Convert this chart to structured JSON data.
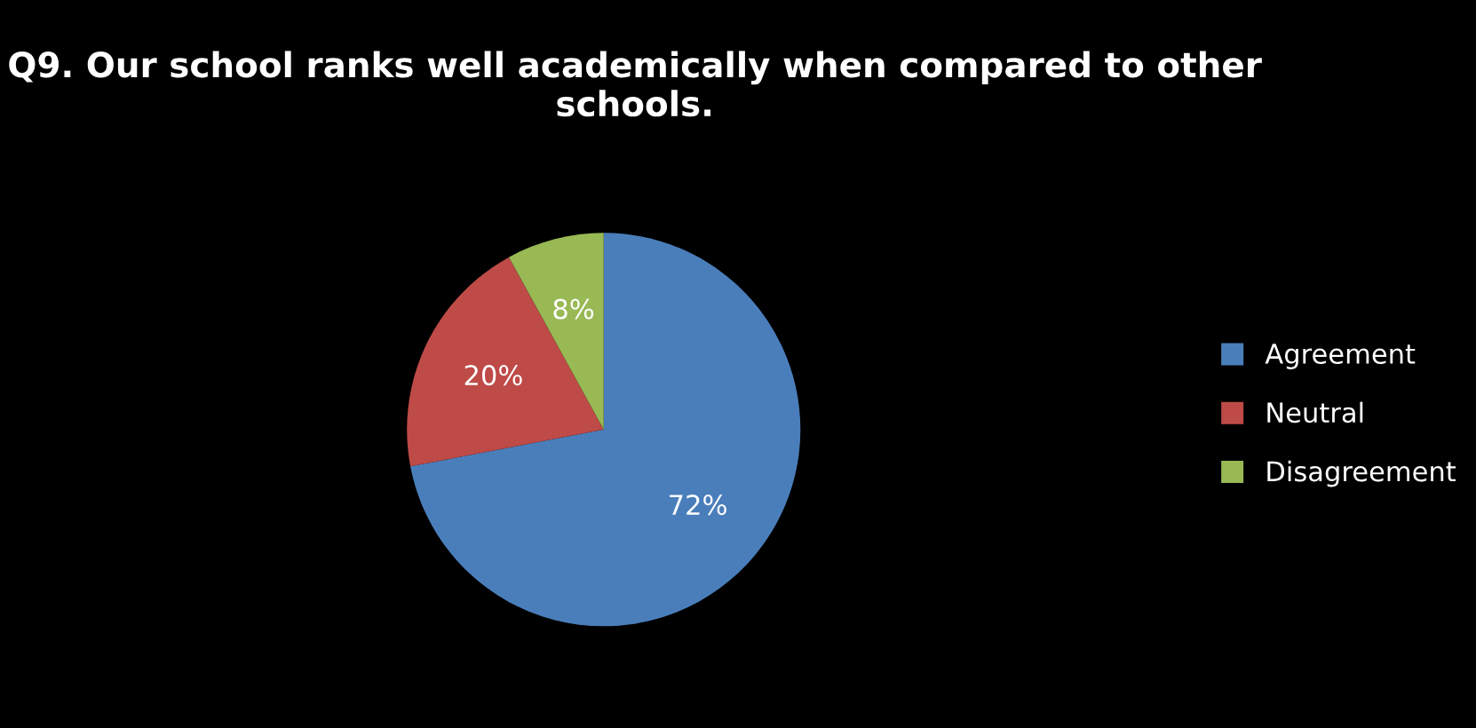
{
  "chart_data": {
    "type": "pie",
    "title": "Q9. Our school ranks well academically when compared to other schools.",
    "categories": [
      "Agreement",
      "Neutral",
      "Disagreement"
    ],
    "values": [
      72,
      20,
      8
    ],
    "colors": [
      "#4a7ebb",
      "#be4b48",
      "#98b954"
    ],
    "value_labels": [
      "72%",
      "20%",
      "8%"
    ],
    "legend": "right"
  }
}
